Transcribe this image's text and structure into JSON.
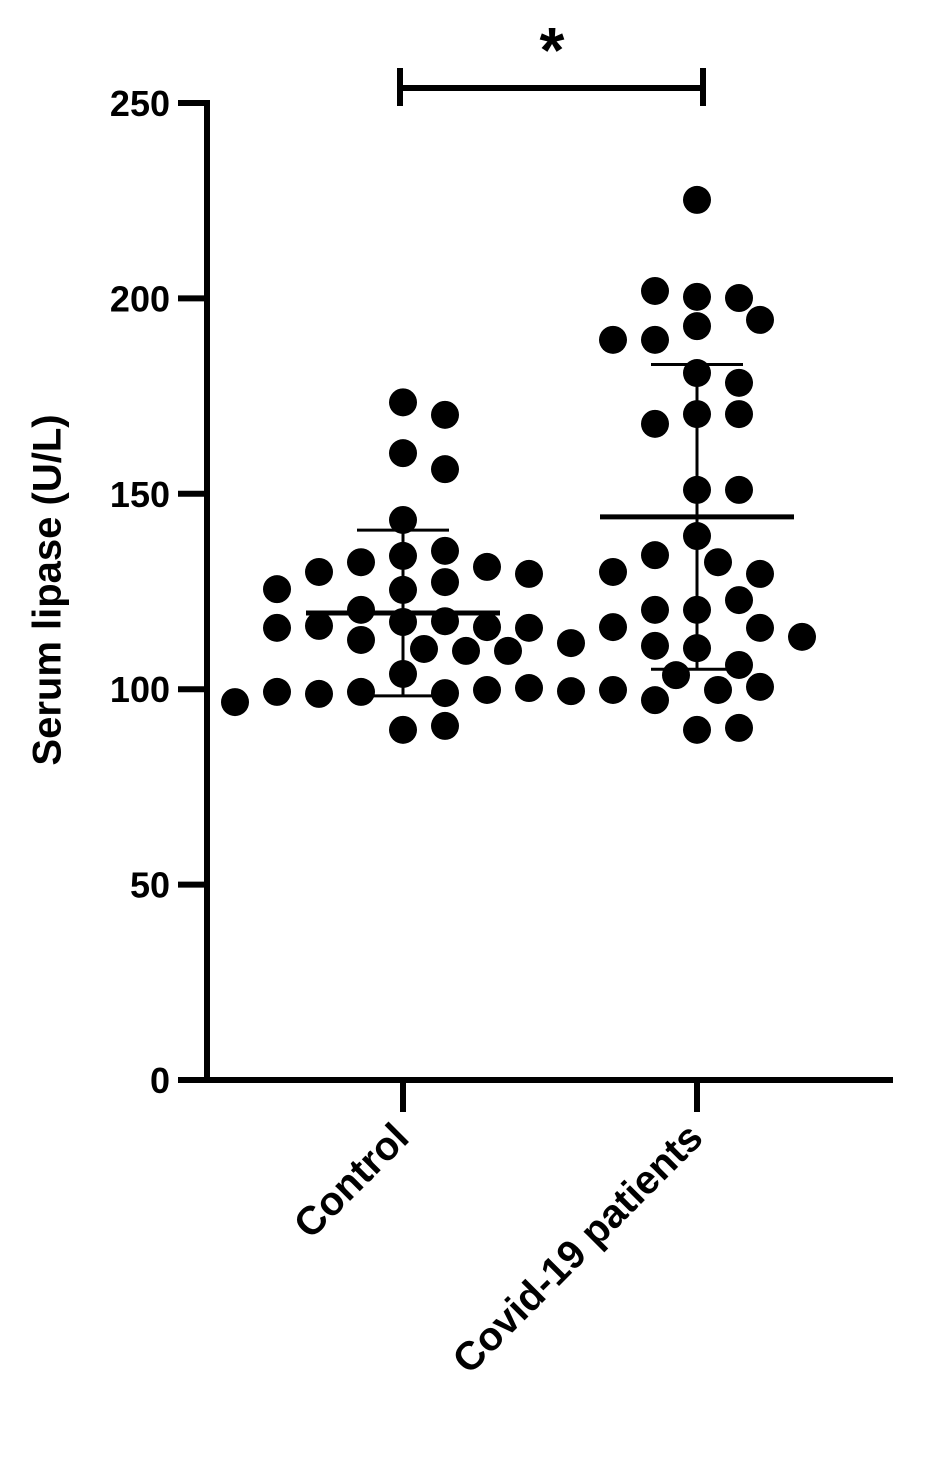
{
  "chart_data": {
    "type": "dotplot",
    "ylabel": "Serum lipase (U/L)",
    "ylim": [
      0,
      250
    ],
    "yticks": [
      0,
      50,
      100,
      150,
      200,
      250
    ],
    "categories": [
      "Control",
      "Covid-19 patients"
    ],
    "color": "#000000",
    "annotation": "*",
    "groups": [
      {
        "values": [
          173.4,
          170.2,
          160.4,
          156.3,
          143.3,
          134.1,
          135.4,
          132.5,
          131.3,
          130.0,
          129.5,
          125.4,
          127.4,
          125.6,
          120.3,
          117.2,
          117.4,
          115.9,
          116.2,
          115.7,
          115.7,
          112.6,
          110.3,
          109.8,
          111.8,
          109.8,
          103.9,
          99.0,
          99.3,
          99.8,
          98.8,
          100.3,
          99.3,
          99.5,
          96.7,
          89.6,
          90.6
        ],
        "mean": 119.5,
        "sd": 21.2
      },
      {
        "values": [
          225.2,
          200.4,
          200.1,
          201.9,
          192.9,
          194.5,
          189.4,
          189.4,
          180.9,
          178.4,
          170.4,
          170.4,
          167.9,
          151.0,
          151.0,
          139.2,
          132.5,
          134.3,
          129.5,
          130.0,
          120.3,
          122.8,
          120.3,
          115.7,
          115.9,
          110.5,
          113.4,
          111.1,
          106.2,
          103.6,
          99.8,
          100.6,
          97.2,
          99.8,
          89.6,
          90.1
        ],
        "mean": 144.1,
        "sd": 39.0
      }
    ]
  }
}
